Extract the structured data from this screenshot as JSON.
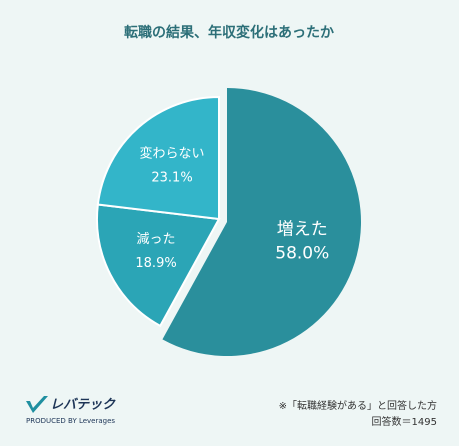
{
  "chart_data": {
    "type": "pie",
    "title": "転職の結果、年収変化はあったか",
    "categories": [
      "増えた",
      "減った",
      "変わらない"
    ],
    "values": [
      58.0,
      18.9,
      23.1
    ],
    "value_labels": [
      "58.0%",
      "18.9%",
      "23.1%"
    ],
    "colors": [
      "#2a8f9c",
      "#2ba5b6",
      "#33b5c9"
    ],
    "explode": [
      true,
      false,
      false
    ],
    "notes": [
      "※「転職経験がある」と回答した方",
      "回答数＝1495"
    ]
  },
  "logo": {
    "name": "レバテック",
    "tagline": "PRODUCED BY Leverages"
  }
}
